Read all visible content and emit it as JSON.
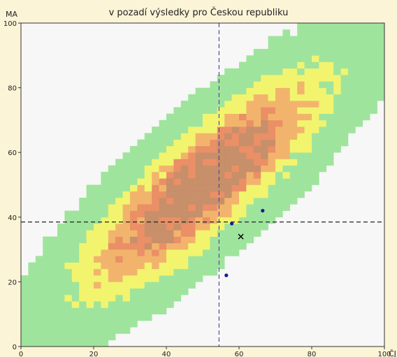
{
  "chart_data": {
    "type": "heatmap",
    "title": "v pozadí výsledky pro Českou republiku",
    "xlabel": "ČJ",
    "ylabel": "MA",
    "xlim": [
      0,
      100
    ],
    "ylim": [
      0,
      100
    ],
    "x_ticks": [
      0,
      20,
      40,
      60,
      80,
      100
    ],
    "y_ticks": [
      0,
      20,
      40,
      60,
      80,
      100
    ],
    "grid": false,
    "legend": "none",
    "bins": 50,
    "density_colors": [
      "#f7f7f7",
      "#9fe49c",
      "#f2f46e",
      "#f2b46c",
      "#ea8f66",
      "#c78f6a"
    ],
    "reference_lines": {
      "x_mean": 54.5,
      "y_mean": 38.5,
      "color": "#222222",
      "dash": "dashed"
    },
    "points": [
      {
        "x": 58,
        "y": 38,
        "marker": "dot",
        "color": "#1a1a9a"
      },
      {
        "x": 66.5,
        "y": 42,
        "marker": "dot",
        "color": "#1a1a9a"
      },
      {
        "x": 56.5,
        "y": 22,
        "marker": "dot",
        "color": "#1a1a9a"
      },
      {
        "x": 60.5,
        "y": 34,
        "marker": "cross",
        "color": "#000000"
      }
    ]
  }
}
